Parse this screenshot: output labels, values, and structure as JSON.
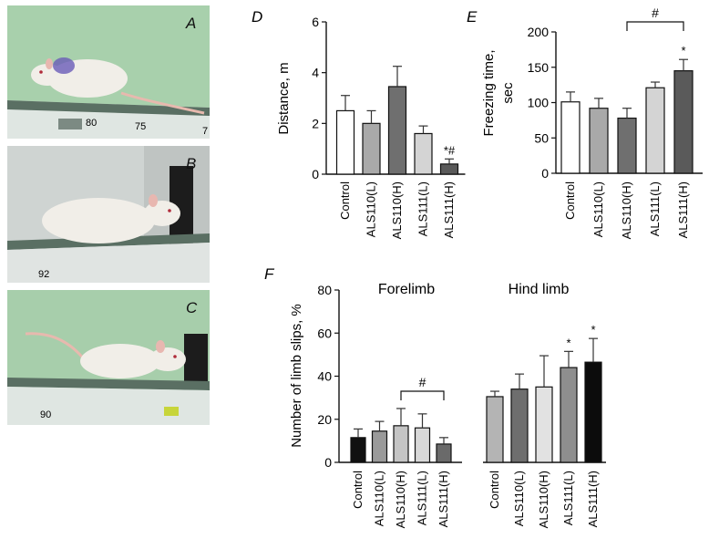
{
  "panel_labels": {
    "a": "A",
    "b": "B",
    "c": "C",
    "d": "D",
    "e": "E",
    "f": "F"
  },
  "photo_marks": {
    "a1": "80",
    "a2": "75",
    "a3": "7",
    "b1": "92",
    "c1": "90"
  },
  "colors": {
    "photo_bg": "#9fc9a4",
    "beam": "#5a6f63",
    "rat": "#f1eee8",
    "tail": "#e7b9ae",
    "dye": "#6a5bb8",
    "bars": [
      "#ffffff",
      "#a9a9a9",
      "#6f6f6f",
      "#d4d4d4",
      "#5a5a5a"
    ],
    "bars_f_fore": [
      "#111111",
      "#9a9a9a",
      "#c4c4c4",
      "#d8d8d8",
      "#6a6a6a"
    ],
    "bars_f_hind": [
      "#b4b4b4",
      "#6e6e6e",
      "#e2e2e2",
      "#8e8e8e",
      "#0c0c0c"
    ]
  },
  "chart_data": [
    {
      "id": "D",
      "type": "bar",
      "title": "",
      "ylabel": "Distance, m",
      "categories": [
        "Control",
        "ALS110(L)",
        "ALS110(H)",
        "ALS111(L)",
        "ALS111(H)"
      ],
      "values": [
        2.5,
        2.0,
        3.45,
        1.6,
        0.4
      ],
      "errors": [
        0.6,
        0.5,
        0.8,
        0.3,
        0.2
      ],
      "ylim": [
        0,
        6
      ],
      "yticks": [
        "0",
        "2",
        "4",
        "6"
      ],
      "annotations": [
        "",
        "",
        "",
        "",
        "*#"
      ]
    },
    {
      "id": "E",
      "type": "bar",
      "title": "",
      "ylabel": "Freezing time, sec",
      "ylabel_lines": [
        "Freezing time,",
        "sec"
      ],
      "categories": [
        "Control",
        "ALS110(L)",
        "ALS110(H)",
        "ALS111(L)",
        "ALS111(H)"
      ],
      "values": [
        101,
        92,
        78,
        121,
        145
      ],
      "errors": [
        14,
        14,
        14,
        8,
        16
      ],
      "ylim": [
        0,
        200
      ],
      "yticks": [
        "0",
        "50",
        "100",
        "150",
        "200"
      ],
      "annotations": [
        "",
        "",
        "",
        "",
        "*"
      ],
      "bracket": {
        "from": 2,
        "to": 4,
        "label": "#"
      }
    },
    {
      "id": "F",
      "type": "bar",
      "title": "",
      "ylabel": "Number of limb slips, %",
      "groups": [
        {
          "name": "Forelimb",
          "categories": [
            "Control",
            "ALS110(L)",
            "ALS110(H)",
            "ALS111(L)",
            "ALS111(H)"
          ],
          "values": [
            11.5,
            14.5,
            17,
            16,
            8.5
          ],
          "errors": [
            4,
            4.5,
            8,
            6.5,
            3
          ],
          "annotations": [
            "",
            "",
            "",
            "",
            ""
          ],
          "bracket": {
            "from": 2,
            "to": 4,
            "label": "#"
          }
        },
        {
          "name": "Hind limb",
          "categories": [
            "Control",
            "ALS110(L)",
            "ALS110(H)",
            "ALS111(L)",
            "ALS111(H)"
          ],
          "values": [
            30.5,
            34,
            35,
            44,
            46.5
          ],
          "errors": [
            2.5,
            7,
            14.5,
            7.5,
            11
          ],
          "annotations": [
            "",
            "",
            "",
            "*",
            "*"
          ]
        }
      ],
      "ylim": [
        0,
        80
      ],
      "yticks": [
        "0",
        "20",
        "40",
        "60",
        "80"
      ]
    }
  ]
}
